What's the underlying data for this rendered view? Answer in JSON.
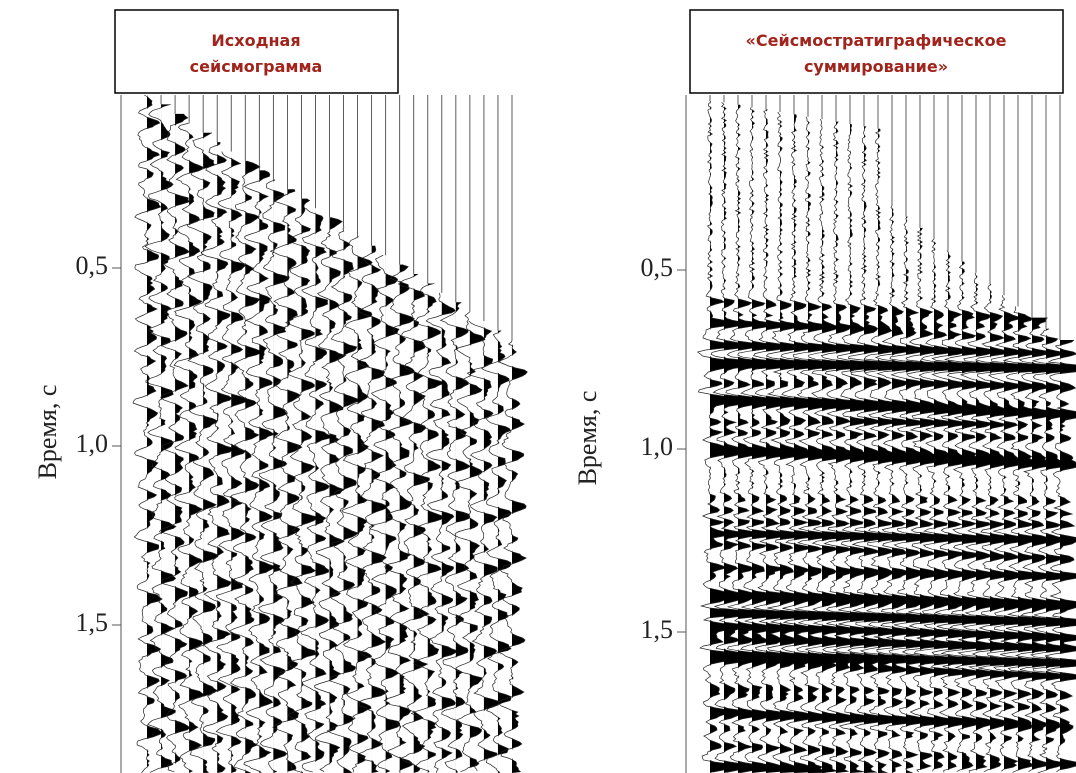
{
  "panels": [
    {
      "title_lines": [
        "Исходная",
        "сейсмограмма"
      ],
      "y_label": "Время, с",
      "tick_labels": [
        "0,5",
        "1,0",
        "1,5"
      ]
    },
    {
      "title_lines": [
        "«Сейсмостратиграфическое",
        "суммирование»"
      ],
      "y_label": "Время, с",
      "tick_labels": [
        "0,5",
        "1,0",
        "1,5"
      ]
    }
  ]
}
